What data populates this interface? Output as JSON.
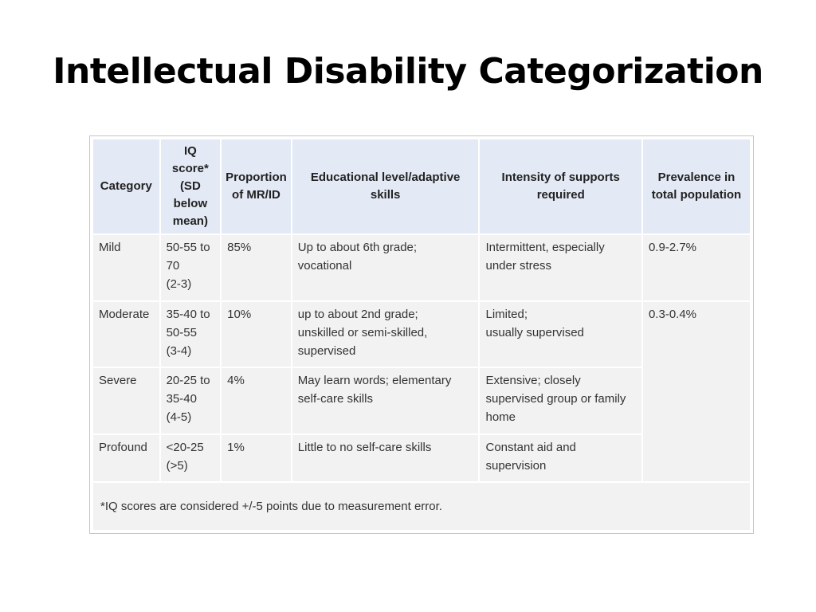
{
  "slide": {
    "title": "Intellectual Disability Categorization"
  },
  "table": {
    "headers": [
      {
        "lines": [
          "IQ",
          "score*",
          "(SD",
          "below",
          "mean)"
        ]
      },
      {
        "lines": [
          "Proportion",
          "of MR/ID"
        ]
      },
      {
        "lines": [
          "Educational level/adaptive",
          "skills"
        ]
      },
      {
        "lines": [
          "Intensity of supports",
          "required"
        ]
      },
      {
        "lines": [
          "Prevalence in",
          "total population"
        ]
      }
    ],
    "category_header": "Category",
    "rows": [
      {
        "category": "Mild",
        "iq": [
          "50-55 to",
          "70",
          "(2-3)"
        ],
        "proportion": "85%",
        "educational": [
          "Up to about 6th grade;",
          "vocational"
        ],
        "supports": [
          "Intermittent, especially",
          "under stress"
        ],
        "prevalence": "0.9-2.7%"
      },
      {
        "category": "Moderate",
        "iq": [
          "35-40 to",
          "50-55",
          "(3-4)"
        ],
        "proportion": "10%",
        "educational": [
          "up to about 2nd grade;",
          "unskilled or semi-skilled,",
          "supervised"
        ],
        "supports": [
          "Limited;",
          "usually supervised"
        ],
        "prevalence": "0.3-0.4%"
      },
      {
        "category": "Severe",
        "iq": [
          "20-25 to",
          "35-40",
          "(4-5)"
        ],
        "proportion": "4%",
        "educational": [
          "May learn words; elementary",
          "self-care skills"
        ],
        "supports": [
          "Extensive; closely",
          "supervised group or family",
          "home"
        ]
      },
      {
        "category": "Profound",
        "iq": [
          "<20-25",
          "(>5)"
        ],
        "proportion": "1%",
        "educational": [
          "Little to no self-care skills"
        ],
        "supports": [
          "Constant aid and",
          "supervision"
        ]
      }
    ],
    "footnote": "*IQ scores are considered +/-5 points due to measurement error."
  }
}
